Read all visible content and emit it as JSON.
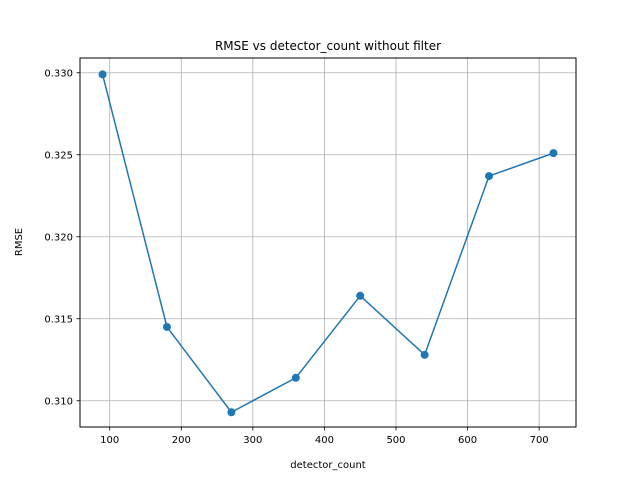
{
  "chart_data": {
    "type": "line",
    "title": "RMSE vs detector_count without filter",
    "xlabel": "detector_count",
    "ylabel": "RMSE",
    "xlim": [
      58.5,
      751.5
    ],
    "ylim": [
      0.3084,
      0.3309
    ],
    "xticks": [
      100,
      200,
      300,
      400,
      500,
      600,
      700
    ],
    "yticks": [
      0.31,
      0.315,
      0.32,
      0.325,
      0.33
    ],
    "xtick_labels": [
      "100",
      "200",
      "300",
      "400",
      "500",
      "600",
      "700"
    ],
    "ytick_labels": [
      "0.310",
      "0.315",
      "0.320",
      "0.325",
      "0.330"
    ],
    "grid": true,
    "legend": "none",
    "color": "#1f77b4",
    "series": [
      {
        "x": [
          90,
          180,
          270,
          360,
          450,
          540,
          630,
          720
        ],
        "y": [
          0.3299,
          0.3145,
          0.3093,
          0.3114,
          0.3164,
          0.3128,
          0.3237,
          0.3251
        ]
      }
    ]
  }
}
